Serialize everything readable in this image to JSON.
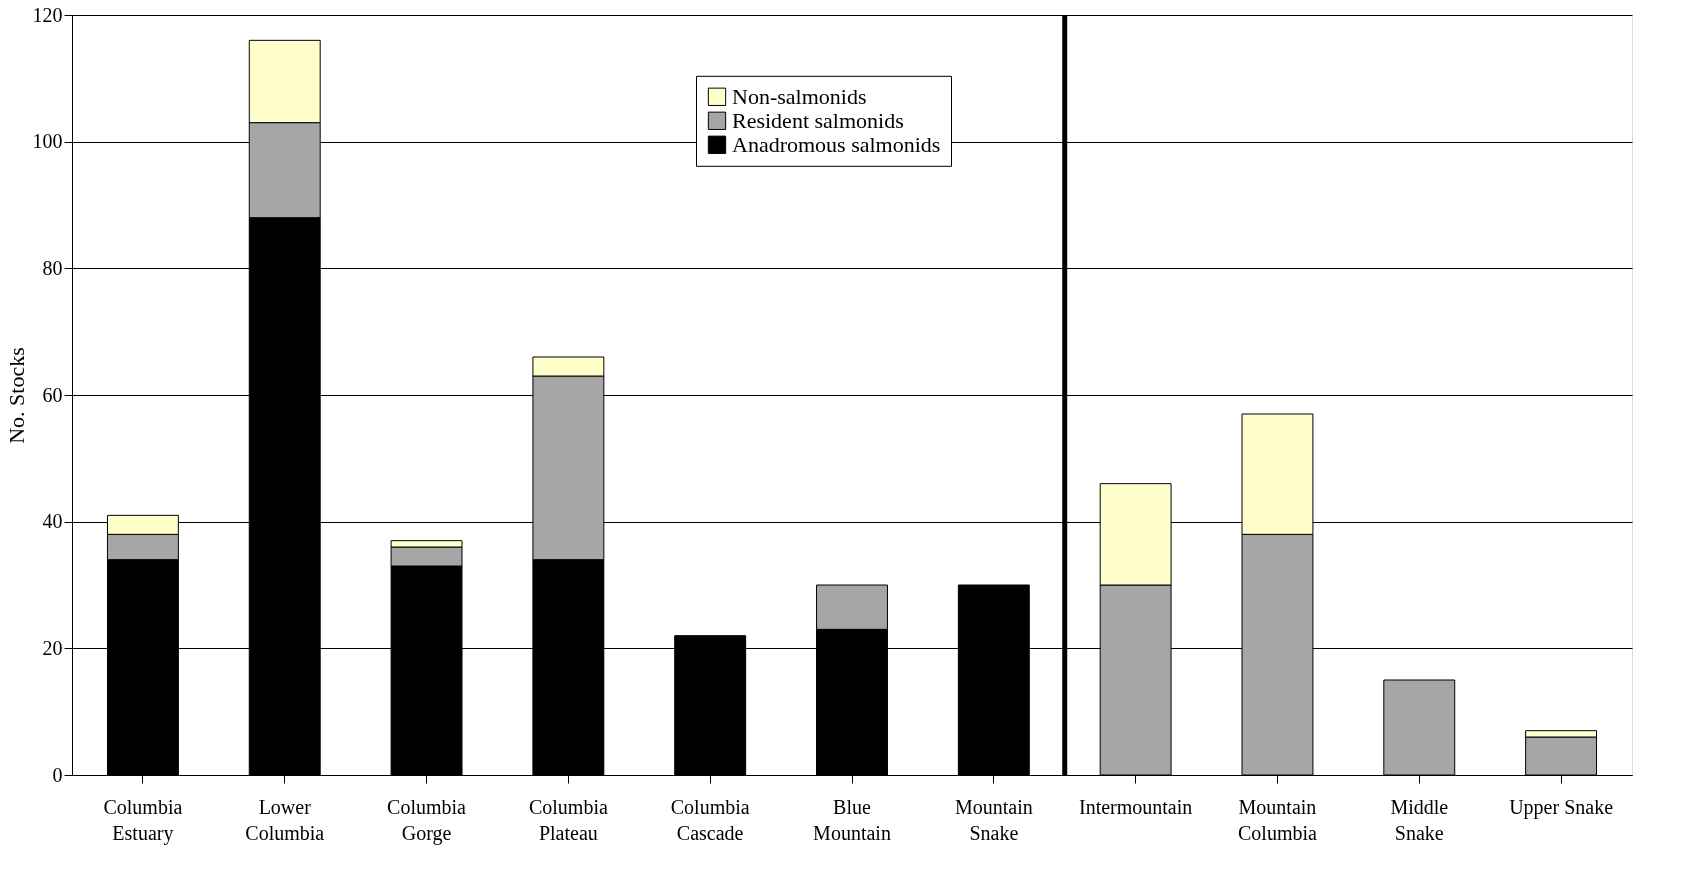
{
  "chart_data": {
    "type": "bar",
    "stacked": true,
    "ylabel": "No. Stocks",
    "categories": [
      "Columbia\nEstuary",
      "Lower\nColumbia",
      "Columbia\nGorge",
      "Columbia\nPlateau",
      "Columbia\nCascade",
      "Blue\nMountain",
      "Mountain\nSnake",
      "Intermountain",
      "Mountain\nColumbia",
      "Middle\nSnake",
      "Upper Snake"
    ],
    "series": [
      {
        "name": "Anadromous salmonids",
        "color": "#000000",
        "values": [
          34,
          88,
          33,
          34,
          22,
          23,
          30,
          0,
          0,
          0,
          0
        ]
      },
      {
        "name": "Resident salmonids",
        "color": "#a6a6a6",
        "values": [
          4,
          15,
          3,
          29,
          0,
          7,
          0,
          30,
          38,
          15,
          6
        ]
      },
      {
        "name": "Non-salmonids",
        "color": "#ffffcc",
        "values": [
          3,
          13,
          1,
          3,
          0,
          0,
          0,
          16,
          19,
          0,
          1
        ]
      }
    ],
    "ylim": [
      0,
      120
    ],
    "yticks": [
      0,
      20,
      40,
      60,
      80,
      100,
      120
    ],
    "grid": "y",
    "legend": "top",
    "ref_lines": [
      {
        "axis": "x",
        "value": "Intermountain",
        "color": "#000000"
      }
    ]
  }
}
